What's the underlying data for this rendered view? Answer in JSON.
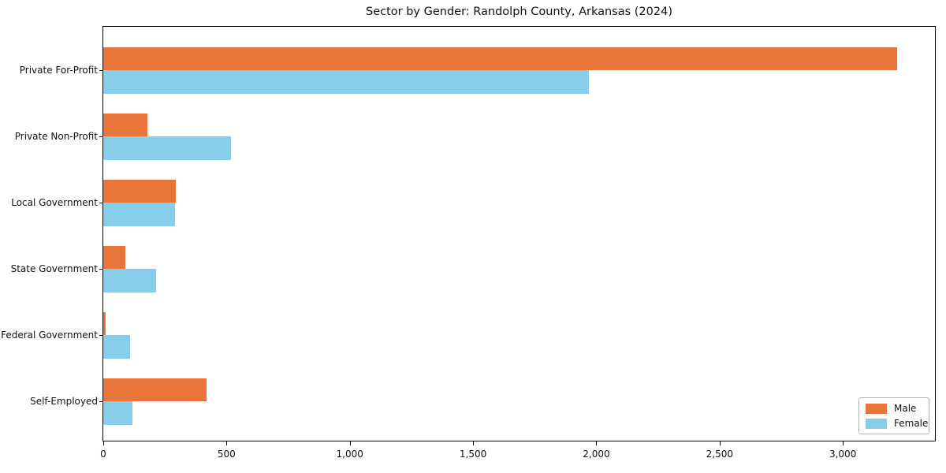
{
  "figure": {
    "title": "Sector by Gender: Randolph County, Arkansas (2024)"
  },
  "chart_data": {
    "type": "bar",
    "orientation": "horizontal",
    "title": "Sector by Gender: Randolph County, Arkansas (2024)",
    "categories": [
      "Private For-Profit",
      "Private Non-Profit",
      "Local Government",
      "State Government",
      "Federal Government",
      "Self-Employed"
    ],
    "series": [
      {
        "name": "Male",
        "color": "#e8763a",
        "values": [
          3220,
          180,
          293,
          90,
          8,
          420
        ]
      },
      {
        "name": "Female",
        "color": "#87ceeb",
        "values": [
          1970,
          517,
          292,
          215,
          110,
          118
        ]
      }
    ],
    "xlabel": "",
    "ylabel": "",
    "xlim": [
      0,
      3380
    ],
    "xticks": [
      0,
      500,
      1000,
      1500,
      2000,
      2500,
      3000
    ],
    "xtick_labels": [
      "0",
      "500",
      "1,000",
      "1,500",
      "2,000",
      "2,500",
      "3,000"
    ],
    "grid": false,
    "legend_position": "lower right",
    "axis_color": "#000000",
    "background_color": "#ffffff"
  }
}
